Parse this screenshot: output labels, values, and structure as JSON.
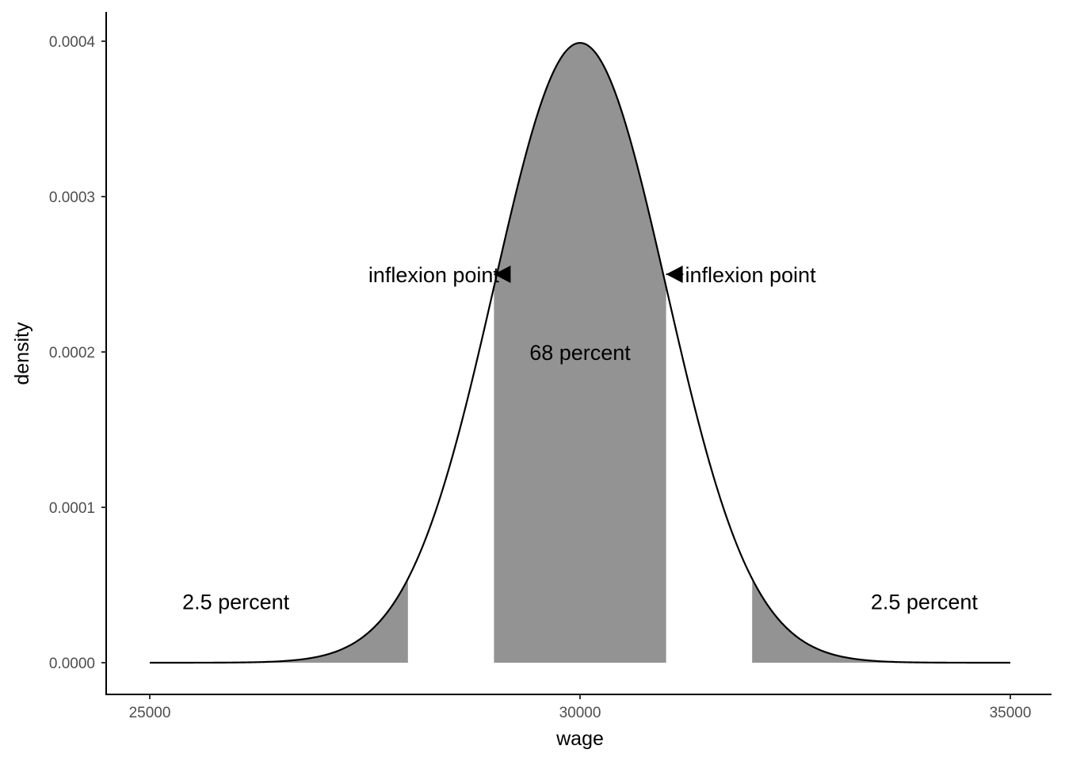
{
  "chart_data": {
    "type": "area",
    "title": "",
    "xlabel": "wage",
    "ylabel": "density",
    "xlim": [
      24000,
      35500
    ],
    "ylim": [
      -2e-05,
      0.00042
    ],
    "grid": false,
    "legend": null,
    "distribution": {
      "kind": "normal",
      "mean": 30000,
      "sd": 1000,
      "x_range": [
        25000,
        35000
      ]
    },
    "x_ticks": [
      {
        "value": 25000,
        "label": "25000"
      },
      {
        "value": 30000,
        "label": "30000"
      },
      {
        "value": 35000,
        "label": "35000"
      }
    ],
    "y_ticks": [
      {
        "value": 0.0,
        "label": "0.0000"
      },
      {
        "value": 0.0001,
        "label": "0.0001"
      },
      {
        "value": 0.0002,
        "label": "0.0002"
      },
      {
        "value": 0.0003,
        "label": "0.0003"
      },
      {
        "value": 0.0004,
        "label": "0.0004"
      }
    ],
    "shaded_regions": [
      {
        "name": "lower-tail",
        "from": 25000,
        "to": 28000
      },
      {
        "name": "center",
        "from": 29000,
        "to": 31000
      },
      {
        "name": "upper-tail",
        "from": 32000,
        "to": 35000
      }
    ],
    "annotations": [
      {
        "name": "lower-tail-label",
        "text": "2.5 percent",
        "x": 26000,
        "y": 3.95e-05,
        "anchor": "middle"
      },
      {
        "name": "upper-tail-label",
        "text": "2.5 percent",
        "x": 34000,
        "y": 3.95e-05,
        "anchor": "middle"
      },
      {
        "name": "center-label",
        "text": "68 percent",
        "x": 30000,
        "y": 0.0002,
        "anchor": "middle"
      },
      {
        "name": "left-inflexion-label",
        "text": "inflexion point",
        "x": 28300,
        "y": 0.00025,
        "anchor": "middle"
      },
      {
        "name": "right-inflexion-label",
        "text": "inflexion point",
        "x": 31980,
        "y": 0.00025,
        "anchor": "middle"
      }
    ],
    "arrows": [
      {
        "name": "left-inflexion-arrow",
        "tip_x": 29000,
        "tail_x": 29100,
        "y": 0.00025
      },
      {
        "name": "right-inflexion-arrow",
        "tip_x": 31000,
        "tail_x": 31200,
        "y": 0.00025
      }
    ],
    "colors": {
      "fill": "#939393",
      "line": "#000000",
      "axis": "#000000",
      "tick_label": "#4d4d4d",
      "background": "#ffffff"
    }
  }
}
